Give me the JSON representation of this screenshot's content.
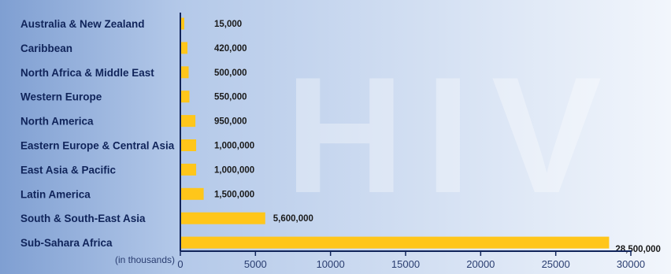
{
  "watermark_text": "HIV",
  "colors": {
    "background_left": "#7f9fd2",
    "background_right": "#f2f6fc",
    "bar": "#ffc61a",
    "axis": "#10245a",
    "category_text": "#10245a"
  },
  "chart_data": {
    "type": "bar",
    "orientation": "horizontal",
    "categories": [
      "Australia & New Zealand",
      "Caribbean",
      "North Africa & Middle East",
      "Western Europe",
      "North America",
      "Eastern Europe & Central Asia",
      "East Asia & Pacific",
      "Latin America",
      "South & South-East Asia",
      "Sub-Sahara Africa"
    ],
    "values": [
      15,
      420,
      500,
      550,
      950,
      1000,
      1000,
      1500,
      5600,
      28500
    ],
    "value_labels": [
      "15,000",
      "420,000",
      "500,000",
      "550,000",
      "950,000",
      "1,000,000",
      "1,000,000",
      "1,500,000",
      "5,600,000",
      "28,500,000"
    ],
    "xlabel": "(in thousands)",
    "xlim": [
      0,
      30000
    ],
    "xticks": [
      0,
      5000,
      10000,
      15000,
      20000,
      25000,
      30000
    ],
    "grid": false,
    "legend": "none"
  }
}
